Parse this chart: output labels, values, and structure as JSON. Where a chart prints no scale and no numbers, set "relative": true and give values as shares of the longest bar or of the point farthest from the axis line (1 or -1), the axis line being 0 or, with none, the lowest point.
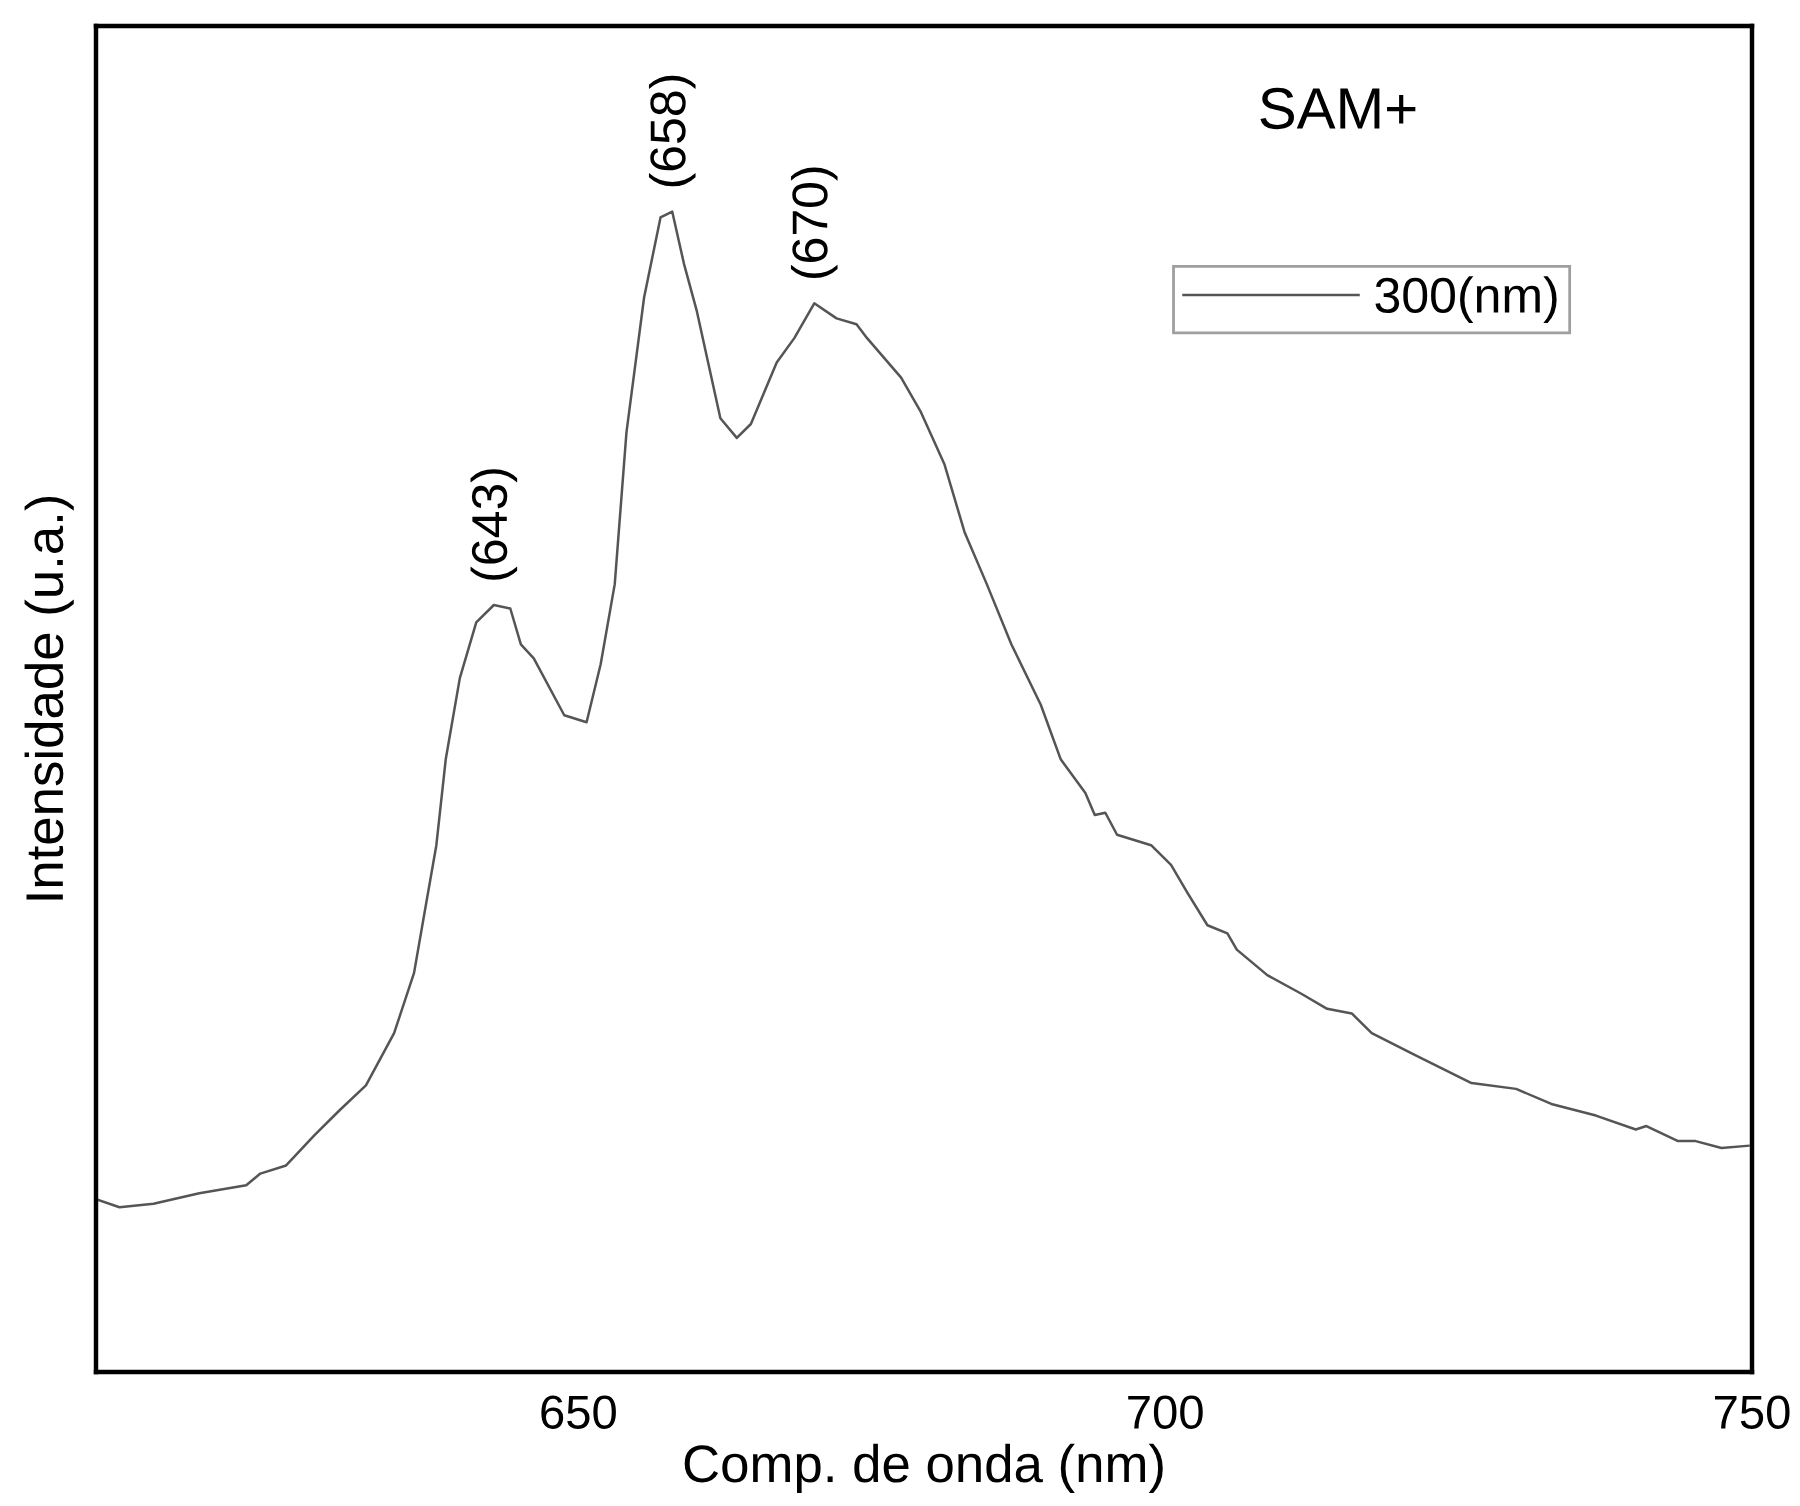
{
  "chart_data": {
    "type": "line",
    "title": "SAM+",
    "xlabel": "Comp. de onda (nm)",
    "ylabel": "Intensidade (u.a.)",
    "relative": true,
    "xlim": [
      608.9,
      750
    ],
    "xticks": [
      650,
      700,
      750
    ],
    "grid": false,
    "legend": "top right",
    "marker": "none",
    "line_style": "solid",
    "tick_labels": "x",
    "annotations": [
      {
        "text": "(643)",
        "x": 642.8,
        "y": 0.661
      },
      {
        "text": "(658)",
        "x": 658.0,
        "y": 1
      },
      {
        "text": "(670)",
        "x": 670.1,
        "y": 0.921
      }
    ],
    "series": [
      {
        "name": "300(nm)",
        "color": "#555555",
        "x": [
          608.9,
          610.9,
          613.8,
          617.7,
          621.7,
          622.9,
          625.1,
          627.5,
          629.7,
          631.9,
          634.3,
          636.0,
          637.0,
          637.9,
          638.7,
          639.9,
          641.3,
          642.8,
          644.2,
          645.1,
          646.2,
          648.8,
          650.7,
          651.9,
          653.1,
          654.1,
          655.6,
          657.0,
          658.0,
          659.0,
          660.1,
          662.1,
          663.5,
          664.7,
          666.9,
          668.4,
          670.1,
          672.0,
          673.7,
          674.6,
          677.5,
          679.2,
          681.2,
          682.9,
          684.8,
          686.9,
          689.4,
          691.1,
          693.2,
          694.0,
          694.9,
          695.9,
          698.8,
          700.5,
          701.9,
          703.6,
          705.3,
          706.1,
          708.7,
          711.6,
          713.8,
          715.9,
          717.6,
          721.3,
          726.1,
          729.9,
          732.9,
          736.7,
          740.1,
          741.0,
          743.7,
          745.2,
          747.4,
          749.7
        ],
        "values": [
          0.149,
          0.142,
          0.145,
          0.154,
          0.161,
          0.171,
          0.178,
          0.204,
          0.226,
          0.247,
          0.292,
          0.344,
          0.402,
          0.454,
          0.528,
          0.598,
          0.646,
          0.661,
          0.658,
          0.627,
          0.615,
          0.566,
          0.56,
          0.61,
          0.679,
          0.81,
          0.926,
          0.995,
          1,
          0.955,
          0.914,
          0.822,
          0.805,
          0.817,
          0.87,
          0.891,
          0.921,
          0.908,
          0.903,
          0.891,
          0.857,
          0.827,
          0.782,
          0.724,
          0.679,
          0.627,
          0.575,
          0.528,
          0.499,
          0.48,
          0.482,
          0.463,
          0.454,
          0.437,
          0.413,
          0.385,
          0.378,
          0.364,
          0.342,
          0.326,
          0.313,
          0.309,
          0.292,
          0.273,
          0.249,
          0.244,
          0.231,
          0.221,
          0.209,
          0.212,
          0.199,
          0.199,
          0.193,
          0.195
        ]
      }
    ]
  }
}
